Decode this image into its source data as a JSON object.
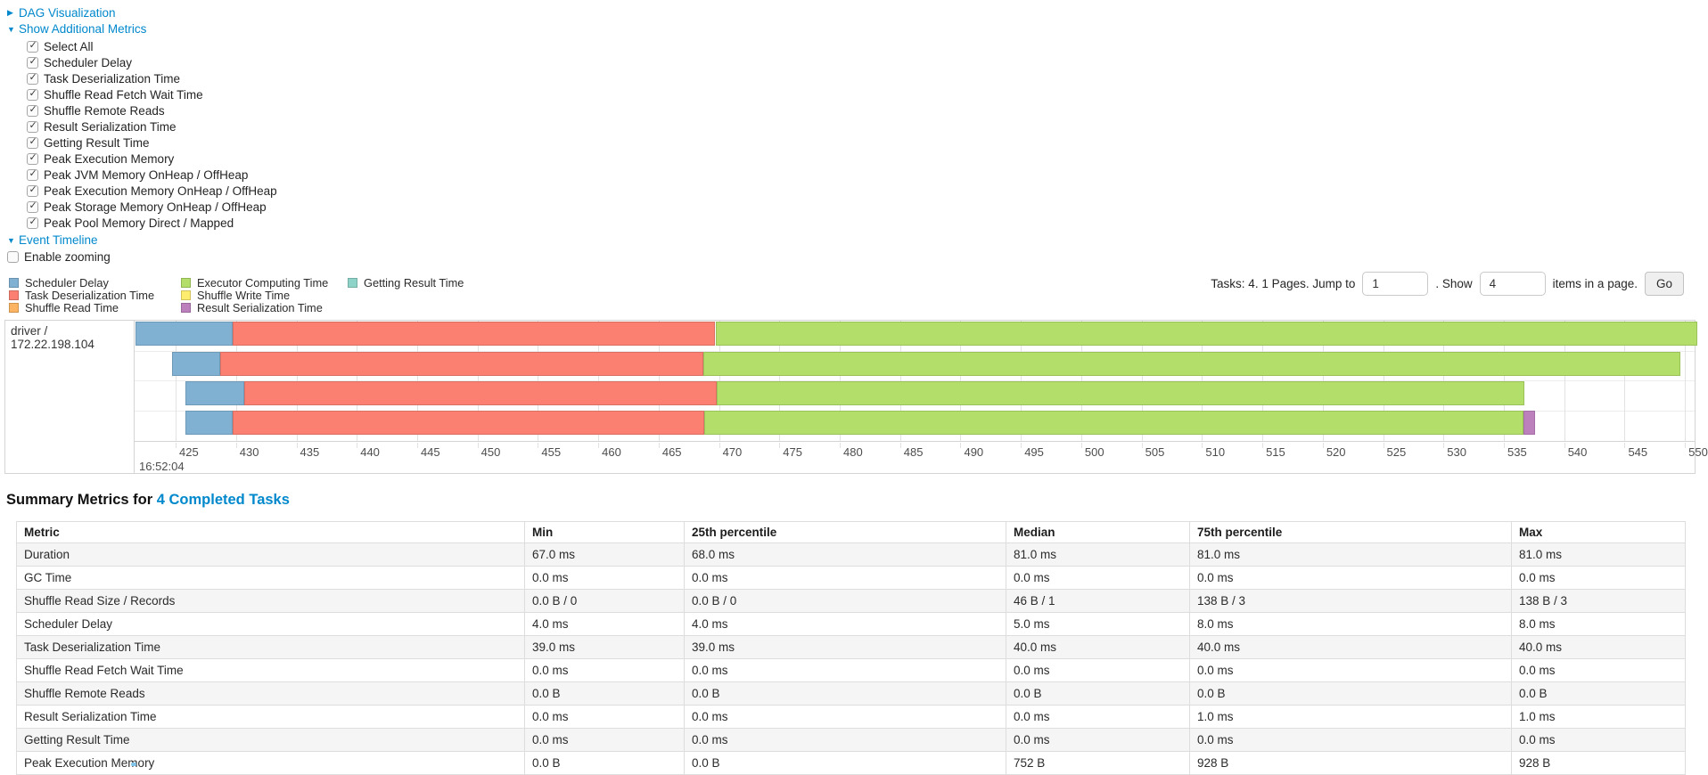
{
  "toggles": {
    "dag": "DAG Visualization",
    "metrics": "Show Additional Metrics",
    "timeline": "Event Timeline"
  },
  "metric_options": [
    "Select All",
    "Scheduler Delay",
    "Task Deserialization Time",
    "Shuffle Read Fetch Wait Time",
    "Shuffle Remote Reads",
    "Result Serialization Time",
    "Getting Result Time",
    "Peak Execution Memory",
    "Peak JVM Memory OnHeap / OffHeap",
    "Peak Execution Memory OnHeap / OffHeap",
    "Peak Storage Memory OnHeap / OffHeap",
    "Peak Pool Memory Direct / Mapped"
  ],
  "enable_zooming_label": "Enable zooming",
  "legend": {
    "columns": [
      [
        {
          "label": "Scheduler Delay",
          "color": "#80B1D3"
        },
        {
          "label": "Task Deserialization Time",
          "color": "#FB8072"
        },
        {
          "label": "Shuffle Read Time",
          "color": "#FDB462"
        }
      ],
      [
        {
          "label": "Executor Computing Time",
          "color": "#B3DE69"
        },
        {
          "label": "Shuffle Write Time",
          "color": "#FFED6F"
        },
        {
          "label": "Result Serialization Time",
          "color": "#BC80BD"
        }
      ],
      [
        {
          "label": "Getting Result Time",
          "color": "#8DD3C7"
        }
      ]
    ]
  },
  "pagination": {
    "tasks_text": "Tasks: 4. 1 Pages. Jump to",
    "jump_value": "1",
    "show_label": ". Show",
    "show_value": "4",
    "items_text": "items in a page.",
    "go_label": "Go"
  },
  "chart_data": {
    "type": "timeline",
    "group_label": "driver / 172.22.198.104",
    "axis": {
      "t_start": 421.6,
      "t_end": 550.8,
      "first_tick": 425,
      "last_tick": 550,
      "tick_interval": 5,
      "base_time_label": "16:52:04",
      "units": "ms offset within second 16:52:04"
    },
    "series_colors": {
      "scheduler_delay": "#80B1D3",
      "task_deserialization": "#FB8072",
      "shuffle_read": "#FDB462",
      "executor_computing": "#B3DE69",
      "shuffle_write": "#FFED6F",
      "result_serialization": "#BC80BD",
      "getting_result": "#8DD3C7"
    },
    "tasks": [
      {
        "segments": [
          {
            "type": "scheduler_delay",
            "start": 421.7,
            "end": 429.7
          },
          {
            "type": "task_deserialization",
            "start": 429.7,
            "end": 469.7
          },
          {
            "type": "executor_computing",
            "start": 469.7,
            "end": 551.0
          }
        ]
      },
      {
        "segments": [
          {
            "type": "scheduler_delay",
            "start": 424.7,
            "end": 428.7
          },
          {
            "type": "task_deserialization",
            "start": 428.7,
            "end": 468.7
          },
          {
            "type": "executor_computing",
            "start": 468.7,
            "end": 549.6
          }
        ]
      },
      {
        "segments": [
          {
            "type": "scheduler_delay",
            "start": 425.8,
            "end": 430.7
          },
          {
            "type": "task_deserialization",
            "start": 430.7,
            "end": 469.8
          },
          {
            "type": "executor_computing",
            "start": 469.8,
            "end": 536.7
          }
        ]
      },
      {
        "segments": [
          {
            "type": "scheduler_delay",
            "start": 425.8,
            "end": 429.7
          },
          {
            "type": "task_deserialization",
            "start": 429.7,
            "end": 468.8
          },
          {
            "type": "executor_computing",
            "start": 468.8,
            "end": 536.6
          },
          {
            "type": "result_serialization",
            "start": 536.6,
            "end": 537.6
          }
        ]
      }
    ]
  },
  "summary": {
    "title_prefix": "Summary Metrics for ",
    "title_link": "4 Completed Tasks",
    "columns": [
      "Metric",
      "Min",
      "25th percentile",
      "Median",
      "75th percentile",
      "Max"
    ],
    "rows": [
      [
        "Duration",
        "67.0 ms",
        "68.0 ms",
        "81.0 ms",
        "81.0 ms",
        "81.0 ms"
      ],
      [
        "GC Time",
        "0.0 ms",
        "0.0 ms",
        "0.0 ms",
        "0.0 ms",
        "0.0 ms"
      ],
      [
        "Shuffle Read Size / Records",
        "0.0 B / 0",
        "0.0 B / 0",
        "46 B / 1",
        "138 B / 3",
        "138 B / 3"
      ],
      [
        "Scheduler Delay",
        "4.0 ms",
        "4.0 ms",
        "5.0 ms",
        "8.0 ms",
        "8.0 ms"
      ],
      [
        "Task Deserialization Time",
        "39.0 ms",
        "39.0 ms",
        "40.0 ms",
        "40.0 ms",
        "40.0 ms"
      ],
      [
        "Shuffle Read Fetch Wait Time",
        "0.0 ms",
        "0.0 ms",
        "0.0 ms",
        "0.0 ms",
        "0.0 ms"
      ],
      [
        "Shuffle Remote Reads",
        "0.0 B",
        "0.0 B",
        "0.0 B",
        "0.0 B",
        "0.0 B"
      ],
      [
        "Result Serialization Time",
        "0.0 ms",
        "0.0 ms",
        "0.0 ms",
        "1.0 ms",
        "1.0 ms"
      ],
      [
        "Getting Result Time",
        "0.0 ms",
        "0.0 ms",
        "0.0 ms",
        "0.0 ms",
        "0.0 ms"
      ],
      [
        "Peak Execution Memory",
        "0.0 B",
        "0.0 B",
        "752 B",
        "928 B",
        "928 B"
      ]
    ]
  },
  "link_color": "#0088cc"
}
